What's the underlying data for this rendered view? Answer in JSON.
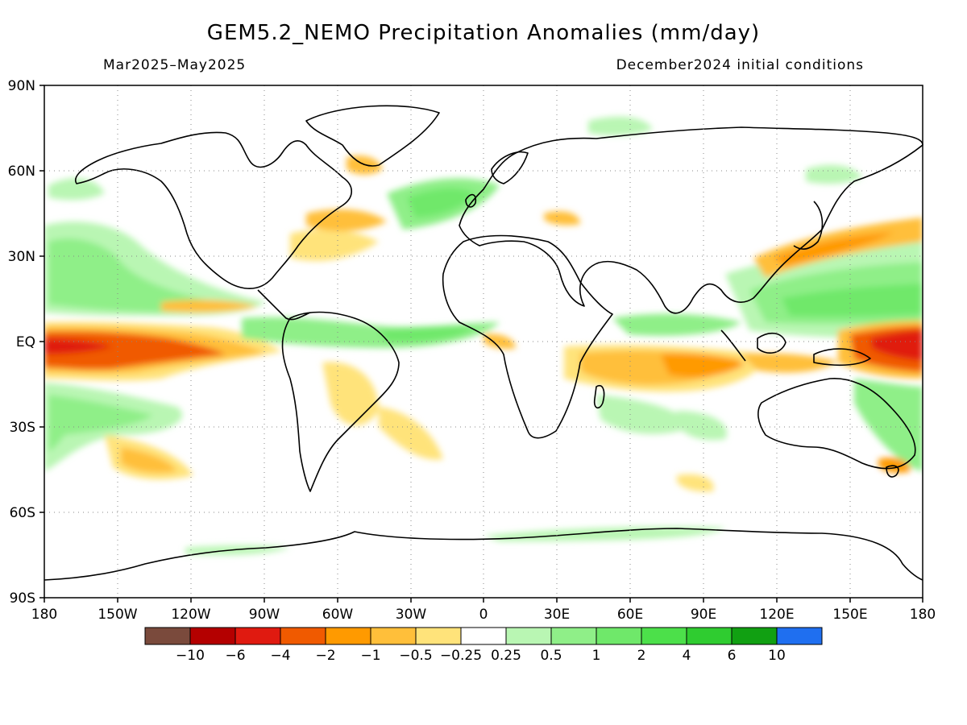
{
  "header": {
    "title": "GEM5.2_NEMO Precipitation Anomalies (mm/day)",
    "period": "Mar2025–May2025",
    "init": "December2024 initial conditions"
  },
  "axes": {
    "lat_labels": [
      "90N",
      "60N",
      "30N",
      "EQ",
      "30S",
      "60S",
      "90S"
    ],
    "lon_labels": [
      "180",
      "150W",
      "120W",
      "90W",
      "60W",
      "30W",
      "0",
      "30E",
      "60E",
      "90E",
      "120E",
      "150E",
      "180"
    ]
  },
  "legend": {
    "colors": [
      "#7a4a3c",
      "#b40000",
      "#e01a10",
      "#f05a00",
      "#ff9a00",
      "#ffbf3a",
      "#ffe37a",
      "#ffffff",
      "#b9f6b3",
      "#8fef88",
      "#6fe86a",
      "#4ce04a",
      "#2fcc30",
      "#11a012",
      "#1f6ff0"
    ],
    "labels": [
      "−10",
      "−6",
      "−4",
      "−2",
      "−1",
      "−0.5",
      "−0.25",
      "0.25",
      "0.5",
      "1",
      "2",
      "4",
      "6",
      "10"
    ]
  }
}
